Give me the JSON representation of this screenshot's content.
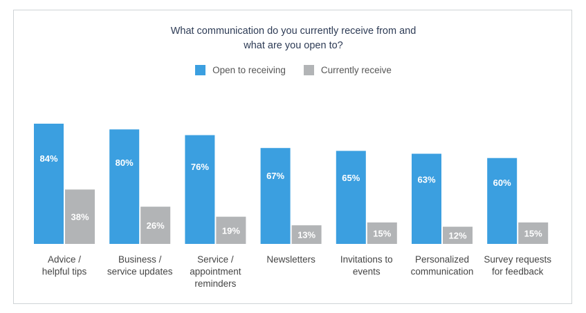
{
  "chart_data": {
    "type": "bar",
    "title": [
      "What communication do you currently receive from and",
      "what are you open to?"
    ],
    "categories": [
      [
        "Advice /",
        "helpful tips"
      ],
      [
        "Business /",
        "service updates"
      ],
      [
        "Service /",
        "appointment",
        "reminders"
      ],
      [
        "Newsletters"
      ],
      [
        "Invitations to",
        "events"
      ],
      [
        "Personalized",
        "communication"
      ],
      [
        "Survey requests",
        "for feedback"
      ]
    ],
    "series": [
      {
        "name": "Open to receiving",
        "values": [
          84,
          80,
          76,
          67,
          65,
          63,
          60
        ],
        "color": "#3b9fe0",
        "label_color": "#ffffff"
      },
      {
        "name": "Currently receive",
        "values": [
          38,
          26,
          19,
          13,
          15,
          12,
          15
        ],
        "color": "#b2b4b6",
        "label_color": "#ffffff"
      }
    ],
    "value_suffix": "%",
    "ylim": [
      0,
      100
    ],
    "legend_position": "top-center",
    "grid": false
  }
}
